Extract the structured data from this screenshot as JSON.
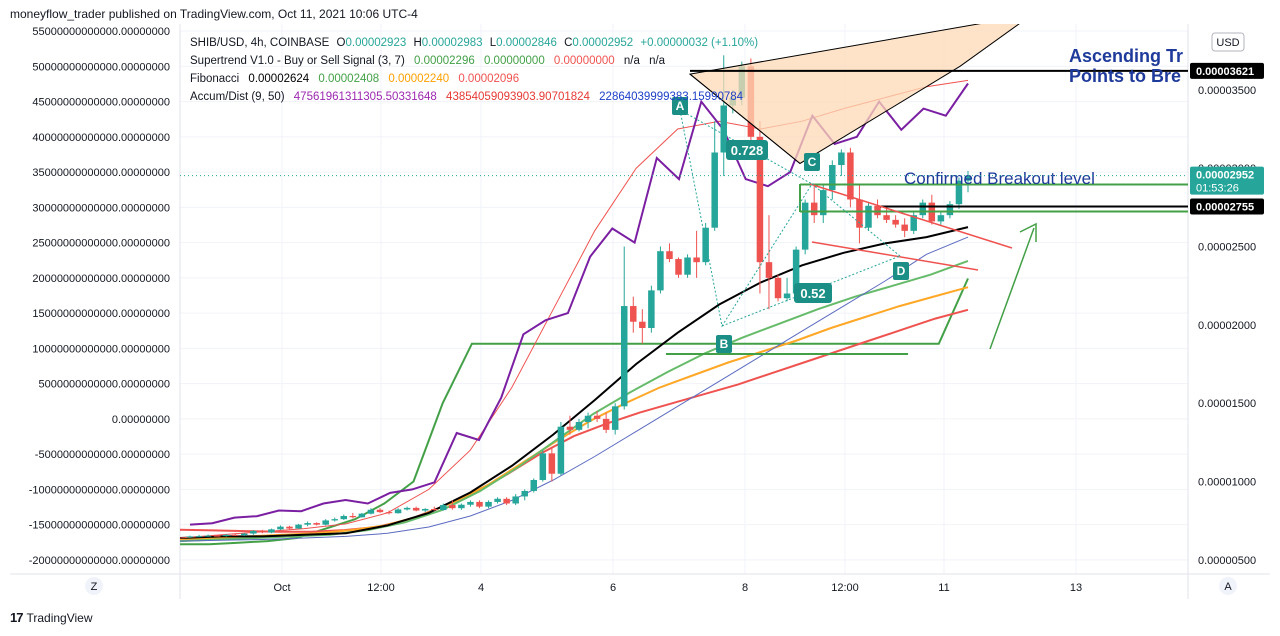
{
  "header": {
    "publisher_line": "moneyflow_trader published on TradingView.com, Oct 11, 2021 10:06 UTC-4"
  },
  "footer": {
    "brand": "TradingView",
    "logo_mark": "17"
  },
  "legend": {
    "symbol": "SHIB/USD, 4h, COINBASE",
    "ohlc": {
      "o_label": "O",
      "o": "0.00002923",
      "h_label": "H",
      "h": "0.00002983",
      "l_label": "L",
      "l": "0.00002846",
      "c_label": "C",
      "c": "0.00002952",
      "change": "+0.00000032 (+1.10%)"
    },
    "supertrend": {
      "name": "Supertrend V1.0 - Buy or Sell Signal (3, 7)",
      "v1": "0.00002296",
      "v2": "0.00000000",
      "v3": "0.00000000",
      "v4": "n/a",
      "v5": "n/a"
    },
    "fibonacci": {
      "name": "Fibonacci",
      "v1": "0.00002624",
      "v2": "0.00002408",
      "v3": "0.00002240",
      "v4": "0.00002096"
    },
    "accum": {
      "name": "Accum/Dist (9, 50)",
      "v1": "47561961311305.50331648",
      "v2": "43854059093903.90701824",
      "v3": "22864039999383.15990784"
    }
  },
  "currency_button": "USD",
  "left_axis_labels": [
    "55000000000000.00000000",
    "50000000000000.00000000",
    "45000000000000.00000000",
    "40000000000000.00000000",
    "35000000000000.00000000",
    "30000000000000.00000000",
    "25000000000000.00000000",
    "20000000000000.00000000",
    "15000000000000.00000000",
    "10000000000000.00000000",
    "5000000000000.00000000",
    "0.00000000",
    "-5000000000000.00000000",
    "-10000000000000.00000000",
    "-15000000000000.00000000",
    "-20000000000000.00000000"
  ],
  "right_axis_labels": [
    "0.00003500",
    "0.00003000",
    "0.00002500",
    "0.00002000",
    "0.00001500",
    "0.00001000",
    "0.00000500"
  ],
  "price_tags": [
    {
      "label": "0.00003621",
      "value": 3.621e-05,
      "style": "black"
    },
    {
      "label": "0.00002952",
      "sub": "01:53:26",
      "value": 2.952e-05,
      "style": "teal"
    },
    {
      "label": "0.00002755",
      "value": 2.755e-05,
      "style": "black"
    }
  ],
  "time_labels": [
    "Oct",
    "12:00",
    "4",
    "6",
    "8",
    "12:00",
    "11",
    "13"
  ],
  "corner_left": "Z",
  "corner_right": "A",
  "annotations": {
    "title_line1": "Ascending Tr",
    "title_line2": "Points to Bre",
    "breakout": "Confirmed Breakout level",
    "fib_high": "0.728",
    "fib_low": "0.52",
    "points": [
      "A",
      "B",
      "C",
      "D"
    ]
  },
  "colors": {
    "up": "#26a69a",
    "down": "#ef5350",
    "accum": "#7b1fa2",
    "wedge_fill": "#fdd9b5",
    "label_bg": "#1b8f86",
    "title": "#1e3a9a",
    "green_line": "#43a047"
  },
  "chart_data": {
    "type": "candlestick",
    "title": "SHIB/USD, 4h, COINBASE",
    "price_axis_range": [
      4.1e-06,
      3.92e-05
    ],
    "accum_axis_range": [
      -22000000000000,
      56000000000000
    ],
    "candles_ohlc": [
      [
        6.48e-06,
        6.55e-06,
        6.4e-06,
        6.5e-06
      ],
      [
        6.5e-06,
        6.6e-06,
        6.45e-06,
        6.52e-06
      ],
      [
        6.52e-06,
        6.62e-06,
        6.48e-06,
        6.55e-06
      ],
      [
        6.55e-06,
        6.6e-06,
        6.5e-06,
        6.52e-06
      ],
      [
        6.52e-06,
        6.65e-06,
        6.48e-06,
        6.6e-06
      ],
      [
        6.6e-06,
        6.68e-06,
        6.52e-06,
        6.58e-06
      ],
      [
        6.58e-06,
        6.72e-06,
        6.52e-06,
        6.68e-06
      ],
      [
        6.68e-06,
        6.9e-06,
        6.6e-06,
        6.85e-06
      ],
      [
        6.85e-06,
        6.92e-06,
        6.7e-06,
        6.75e-06
      ],
      [
        6.75e-06,
        7e-06,
        6.7e-06,
        6.95e-06
      ],
      [
        6.95e-06,
        7.2e-06,
        6.9e-06,
        7.12e-06
      ],
      [
        7.12e-06,
        7.18e-06,
        6.95e-06,
        7e-06
      ],
      [
        7e-06,
        7.3e-06,
        6.98e-06,
        7.25e-06
      ],
      [
        7.25e-06,
        7.45e-06,
        7.15e-06,
        7.35e-06
      ],
      [
        7.35e-06,
        7.4e-06,
        7.2e-06,
        7.25e-06
      ],
      [
        7.25e-06,
        7.6e-06,
        7.2e-06,
        7.52e-06
      ],
      [
        7.52e-06,
        7.7e-06,
        7.45e-06,
        7.6e-06
      ],
      [
        7.6e-06,
        7.9e-06,
        7.55e-06,
        7.8e-06
      ],
      [
        7.8e-06,
        8e-06,
        7.65e-06,
        7.72e-06
      ],
      [
        7.72e-06,
        8e-06,
        7.7e-06,
        7.95e-06
      ],
      [
        7.95e-06,
        8.3e-06,
        7.9e-06,
        8.2e-06
      ],
      [
        8.2e-06,
        8.3e-06,
        8e-06,
        8.05e-06
      ],
      [
        8.05e-06,
        8.15e-06,
        7.9e-06,
        7.98e-06
      ],
      [
        7.98e-06,
        8.3e-06,
        7.95e-06,
        8.22e-06
      ],
      [
        8.22e-06,
        8.4e-06,
        8.15e-06,
        8.32e-06
      ],
      [
        8.32e-06,
        8.4e-06,
        8.1e-06,
        8.15e-06
      ],
      [
        8.15e-06,
        8.3e-06,
        8.05e-06,
        8.25e-06
      ],
      [
        8.25e-06,
        8.4e-06,
        8.15e-06,
        8.18e-06
      ],
      [
        8.18e-06,
        8.6e-06,
        8.15e-06,
        8.5e-06
      ],
      [
        8.5e-06,
        8.8e-06,
        8.2e-06,
        8.3e-06
      ],
      [
        8.3e-06,
        8.6e-06,
        8.2e-06,
        8.52e-06
      ],
      [
        8.52e-06,
        8.8e-06,
        8.4e-06,
        8.7e-06
      ],
      [
        8.7e-06,
        8.8e-06,
        8.3e-06,
        8.4e-06
      ],
      [
        8.4e-06,
        8.8e-06,
        8.3e-06,
        8.7e-06
      ],
      [
        8.7e-06,
        9e-06,
        8.6e-06,
        8.9e-06
      ],
      [
        8.9e-06,
        9e-06,
        8.5e-06,
        8.6e-06
      ],
      [
        8.6e-06,
        9.2e-06,
        8.5e-06,
        9.05e-06
      ],
      [
        9.05e-06,
        9.5e-06,
        8.8e-06,
        9.4e-06
      ],
      [
        9.4e-06,
        1.02e-05,
        9.3e-06,
        1.01e-05
      ],
      [
        1.01e-05,
        1.2e-05,
        1e-05,
        1.18e-05
      ],
      [
        1.18e-05,
        1.22e-05,
        1e-05,
        1.05e-05
      ],
      [
        1.05e-05,
        1.38e-05,
        1.04e-05,
        1.35e-05
      ],
      [
        1.35e-05,
        1.42e-05,
        1.3e-05,
        1.33e-05
      ],
      [
        1.33e-05,
        1.4e-05,
        1.32e-05,
        1.38e-05
      ],
      [
        1.38e-05,
        1.44e-05,
        1.34e-05,
        1.42e-05
      ],
      [
        1.42e-05,
        1.45e-05,
        1.38e-05,
        1.4e-05
      ],
      [
        1.4e-05,
        1.44e-05,
        1.31e-05,
        1.33e-05
      ],
      [
        1.33e-05,
        1.5e-05,
        1.3e-05,
        1.48e-05
      ],
      [
        1.48e-05,
        2.5e-05,
        1.46e-05,
        2.12e-05
      ],
      [
        2.12e-05,
        2.18e-05,
        1.95e-05,
        2.02e-05
      ],
      [
        2.02e-05,
        2.1e-05,
        1.88e-05,
        1.98e-05
      ],
      [
        1.98e-05,
        2.25e-05,
        1.95e-05,
        2.22e-05
      ],
      [
        2.22e-05,
        2.5e-05,
        2.2e-05,
        2.47e-05
      ],
      [
        2.47e-05,
        2.52e-05,
        2.4e-05,
        2.42e-05
      ],
      [
        2.42e-05,
        2.43e-05,
        2.3e-05,
        2.32e-05
      ],
      [
        2.32e-05,
        2.45e-05,
        2.3e-05,
        2.43e-05
      ],
      [
        2.43e-05,
        2.6e-05,
        2.3e-05,
        2.4e-05
      ],
      [
        2.4e-05,
        2.65e-05,
        2.38e-05,
        2.62e-05
      ],
      [
        2.62e-05,
        3.3e-05,
        2.6e-05,
        3.1e-05
      ],
      [
        3.1e-05,
        3.72e-05,
        2.95e-05,
        3.4e-05
      ],
      [
        3.4e-05,
        3.5e-05,
        3.35e-05,
        3.45e-05
      ],
      [
        3.45e-05,
        3.68e-05,
        3.4e-05,
        3.65e-05
      ],
      [
        3.65e-05,
        3.7e-05,
        3.15e-05,
        3.2e-05
      ],
      [
        3.2e-05,
        3.3e-05,
        2.2e-05,
        2.4e-05
      ],
      [
        2.4e-05,
        2.7e-05,
        2.1e-05,
        2.3e-05
      ],
      [
        2.3e-05,
        2.32e-05,
        2.15e-05,
        2.17e-05
      ],
      [
        2.17e-05,
        2.3e-05,
        2.15e-05,
        2.2e-05
      ],
      [
        2.2e-05,
        2.5e-05,
        2.18e-05,
        2.48e-05
      ],
      [
        2.48e-05,
        2.8e-05,
        2.45e-05,
        2.78e-05
      ],
      [
        2.78e-05,
        2.9e-05,
        2.65e-05,
        2.7e-05
      ],
      [
        2.7e-05,
        2.9e-05,
        2.65e-05,
        2.86e-05
      ],
      [
        2.86e-05,
        3.05e-05,
        2.8e-05,
        3.02e-05
      ],
      [
        3.02e-05,
        3.12e-05,
        2.95e-05,
        3.1e-05
      ],
      [
        3.1e-05,
        3.13e-05,
        2.75e-05,
        2.8e-05
      ],
      [
        2.8e-05,
        2.9e-05,
        2.52e-05,
        2.62e-05
      ],
      [
        2.62e-05,
        2.78e-05,
        2.6e-05,
        2.76e-05
      ],
      [
        2.76e-05,
        2.8e-05,
        2.68e-05,
        2.7e-05
      ],
      [
        2.7e-05,
        2.76e-05,
        2.65e-05,
        2.67e-05
      ],
      [
        2.67e-05,
        2.7e-05,
        2.62e-05,
        2.64e-05
      ],
      [
        2.64e-05,
        2.68e-05,
        2.56e-05,
        2.6e-05
      ],
      [
        2.6e-05,
        2.72e-05,
        2.58e-05,
        2.7e-05
      ],
      [
        2.7e-05,
        2.8e-05,
        2.68e-05,
        2.78e-05
      ],
      [
        2.78e-05,
        2.83e-05,
        2.64e-05,
        2.66e-05
      ],
      [
        2.66e-05,
        2.72e-05,
        2.64e-05,
        2.7e-05
      ],
      [
        2.7e-05,
        2.79e-05,
        2.68e-05,
        2.77e-05
      ],
      [
        2.77e-05,
        2.94e-05,
        2.74e-05,
        2.92e-05
      ],
      [
        2.92e-05,
        2.983e-05,
        2.846e-05,
        2.952e-05
      ]
    ],
    "series": [
      {
        "name": "Supertrend V1.0 - Buy or Sell Signal (3, 7)",
        "color": "#43a047",
        "values": [
          6e-06,
          6e-06,
          6.1e-06,
          6.2e-06,
          6.4e-06,
          7e-06,
          7.6e-06,
          8.6e-06,
          1e-05,
          1.5e-05,
          1.88e-05,
          1.88e-05,
          1.88e-05,
          1.88e-05,
          1.88e-05,
          1.88e-05,
          1.88e-05,
          1.88e-05,
          1.88e-05,
          1.88e-05,
          1.88e-05,
          1.88e-05,
          1.88e-05,
          1.88e-05,
          1.88e-05,
          1.88e-05,
          1.88e-05,
          2.296e-05
        ]
      },
      {
        "name": "Fibonacci",
        "color": "#ef5350",
        "values": [
          6.92e-06,
          6.88e-06,
          6.84e-06,
          6.8e-06,
          6.8e-06,
          6.9e-06,
          7.1e-06,
          7.6e-06,
          8.4e-06,
          9.3e-06,
          1.05e-05,
          1.18e-05,
          1.29e-05,
          1.37e-05,
          1.44e-05,
          1.5e-05,
          1.56e-05,
          1.62e-05,
          1.69e-05,
          1.76e-05,
          1.83e-05,
          1.9e-05,
          1.97e-05,
          2.04e-05,
          2.096e-05
        ]
      },
      {
        "name": "Fibonacci",
        "color": "#ffa726",
        "values": [
          6.3e-06,
          6.4e-06,
          6.5e-06,
          6.6e-06,
          6.7e-06,
          6.9e-06,
          7.2e-06,
          7.8e-06,
          8.7e-06,
          9.8e-06,
          1.12e-05,
          1.26e-05,
          1.39e-05,
          1.5e-05,
          1.6e-05,
          1.68e-05,
          1.76e-05,
          1.83e-05,
          1.9e-05,
          1.98e-05,
          2.05e-05,
          2.12e-05,
          2.18e-05,
          2.24e-05
        ]
      },
      {
        "name": "Fibonacci",
        "color": "#66bb6a",
        "values": [
          6.2e-06,
          6.3e-06,
          6.4e-06,
          6.5e-06,
          6.6e-06,
          6.9e-06,
          7.4e-06,
          8.2e-06,
          9.4e-06,
          1.09e-05,
          1.26e-05,
          1.43e-05,
          1.57e-05,
          1.7e-05,
          1.82e-05,
          1.92e-05,
          2.01e-05,
          2.1e-05,
          2.18e-05,
          2.25e-05,
          2.32e-05,
          2.408e-05
        ]
      },
      {
        "name": "Fibonacci",
        "color": "#000000",
        "values": [
          6.4e-06,
          6.5e-06,
          6.5e-06,
          6.6e-06,
          6.7e-06,
          7.2e-06,
          8e-06,
          9.3e-06,
          1.1e-05,
          1.3e-05,
          1.52e-05,
          1.75e-05,
          1.95e-05,
          2.13e-05,
          2.27e-05,
          2.38e-05,
          2.46e-05,
          2.52e-05,
          2.56e-05,
          2.624e-05
        ]
      },
      {
        "name": "MA",
        "color": "#ef5350",
        "values": [
          6.4e-06,
          6.6e-06,
          6.8e-06,
          7e-06,
          7.3e-06,
          8e-06,
          9.5e-06,
          1.2e-05,
          1.6e-05,
          2.1e-05,
          2.6e-05,
          3e-05,
          3.25e-05,
          3.3e-05,
          3.25e-05,
          3.3e-05,
          3.38e-05,
          3.45e-05,
          3.52e-05,
          3.56e-05
        ]
      },
      {
        "name": "MA",
        "color": "#5c6bc0",
        "values": [
          6.2e-06,
          6.25e-06,
          6.3e-06,
          6.4e-06,
          6.5e-06,
          6.7e-06,
          7.1e-06,
          7.8e-06,
          8.8e-06,
          1.01e-05,
          1.16e-05,
          1.32e-05,
          1.48e-05,
          1.64e-05,
          1.8e-05,
          1.96e-05,
          2.12e-05,
          2.28e-05,
          2.45e-05,
          2.56e-05
        ]
      },
      {
        "name": "Accum/Dist (9, 50)",
        "color": "#7b1fa2",
        "values": [
          -15000000000000,
          -14800000000000,
          -14000000000000,
          -13800000000000,
          -13000000000000,
          -13100000000000,
          -12000000000000,
          -11500000000000,
          -12000000000000,
          -10500000000000,
          -10000000000000,
          -9000000000000,
          -2000000000000,
          -3000000000000,
          3000000000000,
          12000000000000,
          14000000000000,
          15000000000000,
          23000000000000,
          27000000000000,
          25000000000000,
          37000000000000,
          34000000000000,
          45000000000000,
          41000000000000,
          34000000000000,
          33000000000000,
          35000000000000,
          43000000000000,
          39000000000000,
          40000000000000,
          45000000000000,
          41000000000000,
          44000000000000,
          43000000000000,
          47561961311305
        ]
      }
    ],
    "wedge": {
      "upper": [
        3.6e-05,
        3.98e-05
      ],
      "lower": [
        3.03e-05,
        3.65e-05
      ]
    },
    "horizontal_levels": [
      3.621e-05,
      2.87e-05,
      2.755e-05
    ]
  }
}
